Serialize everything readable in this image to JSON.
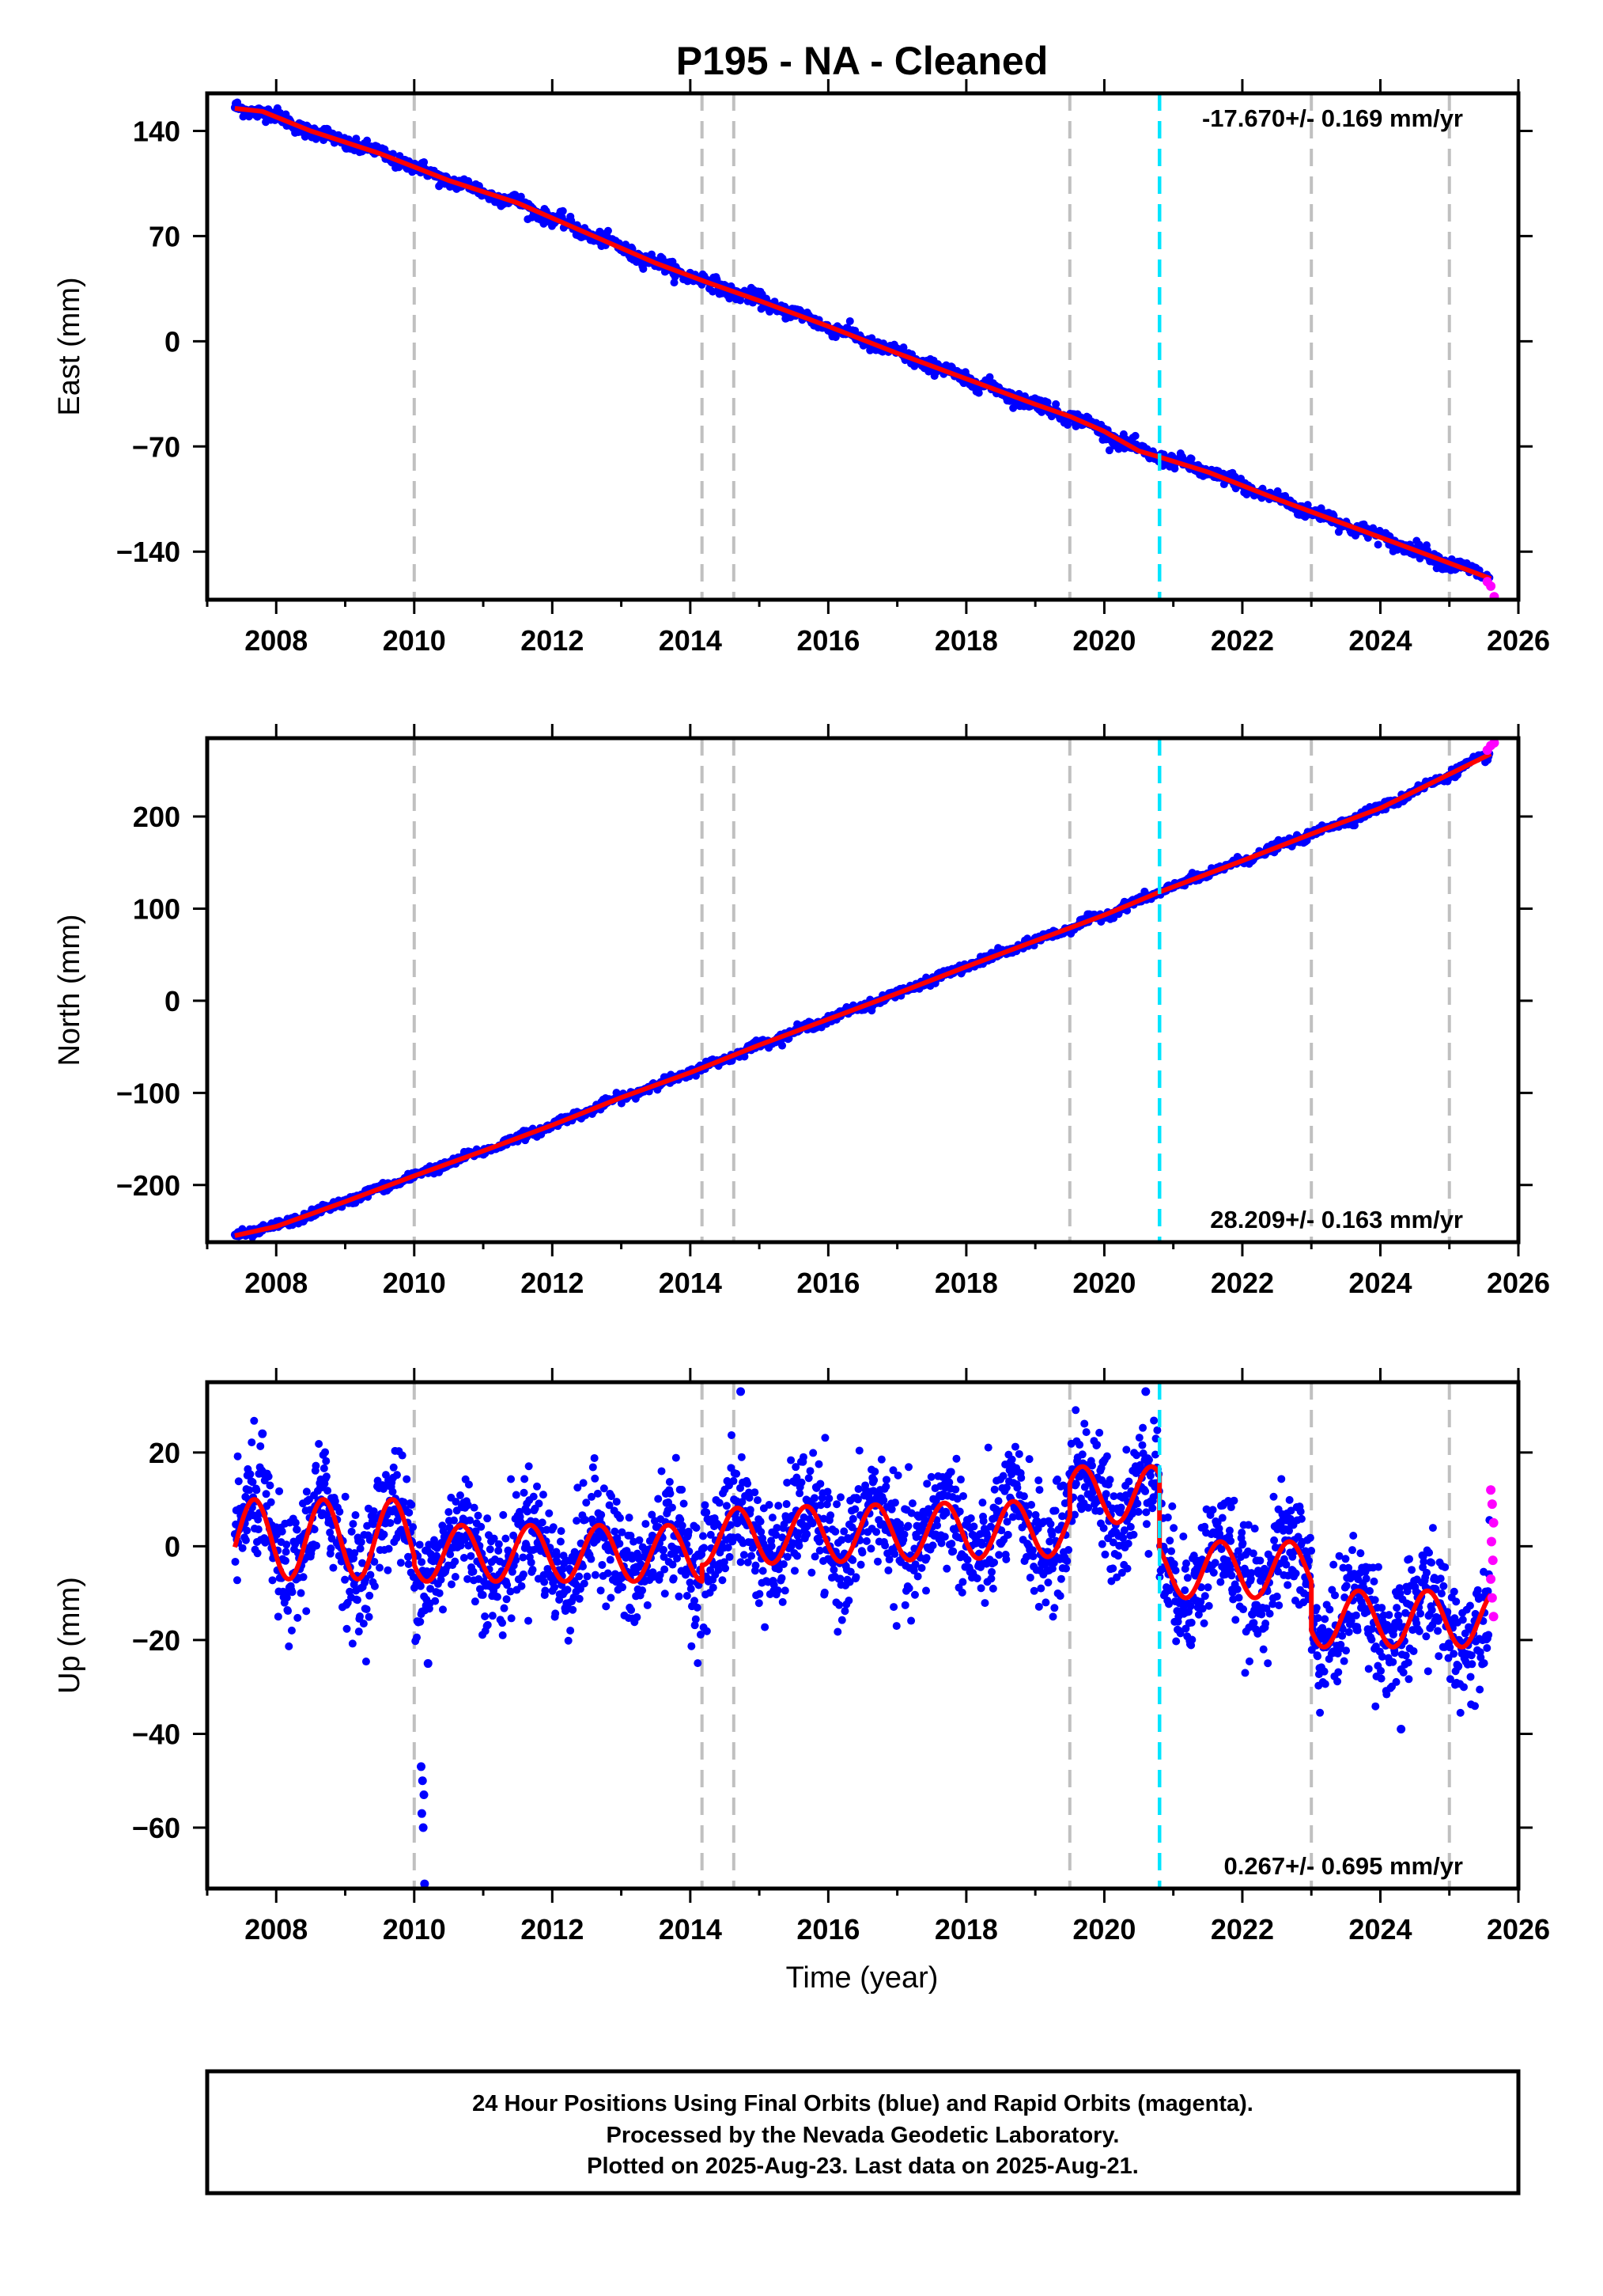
{
  "title": "P195  - NA - Cleaned",
  "xlabel": "Time (year)",
  "footer": {
    "line1": "24 Hour Positions Using Final Orbits (blue) and Rapid Orbits (magenta).",
    "line2": "Processed by the Nevada Geodetic Laboratory.",
    "line3": "Plotted on 2025-Aug-23. Last data on 2025-Aug-21."
  },
  "colors": {
    "final": "#0000ff",
    "rapid": "#ff00ff",
    "model": "#ff0000",
    "event_gray": "#c0c0c0",
    "event_cyan": "#00e5ff"
  },
  "chart_data": [
    {
      "type": "scatter",
      "ylabel": "East (mm)",
      "xlim": [
        2007.0,
        2026.0
      ],
      "ylim": [
        -172,
        165
      ],
      "xticks": [
        2008,
        2010,
        2012,
        2014,
        2016,
        2018,
        2020,
        2022,
        2024,
        2026
      ],
      "yticks": [
        -140,
        -70,
        0,
        70,
        140
      ],
      "rate": "-17.670+/- 0.169 mm/yr",
      "rate_position": "top-right",
      "gray_events": [
        2010.0,
        2014.17,
        2014.63,
        2019.5,
        2023.0,
        2025.0
      ],
      "cyan_events": [
        2020.8
      ],
      "model": [
        {
          "year": 2007.4,
          "value": 155
        },
        {
          "year": 2007.8,
          "value": 153
        },
        {
          "year": 2008.5,
          "value": 140
        },
        {
          "year": 2009.5,
          "value": 125
        },
        {
          "year": 2010.5,
          "value": 107
        },
        {
          "year": 2011.5,
          "value": 92
        },
        {
          "year": 2012.5,
          "value": 72
        },
        {
          "year": 2013.5,
          "value": 52
        },
        {
          "year": 2014.2,
          "value": 40
        },
        {
          "year": 2015.0,
          "value": 27
        },
        {
          "year": 2016.0,
          "value": 10
        },
        {
          "year": 2017.0,
          "value": -8
        },
        {
          "year": 2018.0,
          "value": -25
        },
        {
          "year": 2019.0,
          "value": -42
        },
        {
          "year": 2019.5,
          "value": -50
        },
        {
          "year": 2020.0,
          "value": -60
        },
        {
          "year": 2020.5,
          "value": -73
        },
        {
          "year": 2020.8,
          "value": -77
        },
        {
          "year": 2021.5,
          "value": -87
        },
        {
          "year": 2022.5,
          "value": -105
        },
        {
          "year": 2023.5,
          "value": -122
        },
        {
          "year": 2024.5,
          "value": -139
        },
        {
          "year": 2025.6,
          "value": -158
        }
      ],
      "rapid": [
        {
          "year": 2025.55,
          "value": -160
        },
        {
          "year": 2025.6,
          "value": -163
        },
        {
          "year": 2025.65,
          "value": -170
        }
      ]
    },
    {
      "type": "scatter",
      "ylabel": "North (mm)",
      "xlim": [
        2007.0,
        2026.0
      ],
      "ylim": [
        -262,
        285
      ],
      "xticks": [
        2008,
        2010,
        2012,
        2014,
        2016,
        2018,
        2020,
        2022,
        2024,
        2026
      ],
      "yticks": [
        -200,
        -100,
        0,
        100,
        200
      ],
      "rate": "28.209+/- 0.163 mm/yr",
      "rate_position": "bottom-right",
      "gray_events": [
        2010.0,
        2014.17,
        2014.63,
        2019.5,
        2023.0,
        2025.0
      ],
      "cyan_events": [
        2020.8
      ],
      "model": [
        {
          "year": 2007.4,
          "value": -255
        },
        {
          "year": 2008.0,
          "value": -245
        },
        {
          "year": 2009.0,
          "value": -218
        },
        {
          "year": 2010.0,
          "value": -190
        },
        {
          "year": 2011.0,
          "value": -163
        },
        {
          "year": 2012.0,
          "value": -135
        },
        {
          "year": 2013.0,
          "value": -105
        },
        {
          "year": 2014.0,
          "value": -78
        },
        {
          "year": 2015.0,
          "value": -48
        },
        {
          "year": 2016.0,
          "value": -20
        },
        {
          "year": 2017.0,
          "value": 8
        },
        {
          "year": 2018.0,
          "value": 37
        },
        {
          "year": 2019.0,
          "value": 65
        },
        {
          "year": 2020.0,
          "value": 93
        },
        {
          "year": 2020.8,
          "value": 118
        },
        {
          "year": 2022.0,
          "value": 152
        },
        {
          "year": 2023.0,
          "value": 181
        },
        {
          "year": 2024.0,
          "value": 209
        },
        {
          "year": 2025.6,
          "value": 268
        }
      ],
      "rapid": [
        {
          "year": 2025.55,
          "value": 272
        },
        {
          "year": 2025.6,
          "value": 277
        },
        {
          "year": 2025.65,
          "value": 280
        }
      ]
    },
    {
      "type": "scatter",
      "ylabel": "Up (mm)",
      "xlim": [
        2007.0,
        2026.0
      ],
      "ylim": [
        -73,
        35
      ],
      "xticks": [
        2008,
        2010,
        2012,
        2014,
        2016,
        2018,
        2020,
        2022,
        2024,
        2026
      ],
      "yticks": [
        -60,
        -40,
        -20,
        0,
        20
      ],
      "rate": "0.267+/- 0.695 mm/yr",
      "rate_position": "bottom-right",
      "gray_events": [
        2010.0,
        2014.17,
        2014.63,
        2019.5,
        2023.0,
        2025.0
      ],
      "cyan_events": [
        2020.8
      ],
      "model_segments": [
        {
          "from": 2007.4,
          "to": 2010.0,
          "offset": 1.5,
          "trend": 0.0,
          "amplitude": 8.5
        },
        {
          "from": 2010.0,
          "to": 2014.17,
          "offset": -1.5,
          "trend": 0.0,
          "amplitude": 6.0
        },
        {
          "from": 2014.17,
          "to": 2019.5,
          "offset": 2.0,
          "trend": 0.35,
          "amplitude": 6.0
        },
        {
          "from": 2019.5,
          "to": 2020.8,
          "offset": 11.0,
          "trend": 0.0,
          "amplitude": 6.0
        },
        {
          "from": 2020.8,
          "to": 2023.0,
          "offset": -5.0,
          "trend": 0.0,
          "amplitude": 6.0
        },
        {
          "from": 2023.0,
          "to": 2025.6,
          "offset": -15.5,
          "trend": 0.0,
          "amplitude": 6.0
        }
      ],
      "noise_mm": 6,
      "outliers": [
        {
          "year": 2010.1,
          "value": -47
        },
        {
          "year": 2010.12,
          "value": -50
        },
        {
          "year": 2010.14,
          "value": -53
        },
        {
          "year": 2010.11,
          "value": -57
        },
        {
          "year": 2010.13,
          "value": -60
        },
        {
          "year": 2010.15,
          "value": -72
        },
        {
          "year": 2010.2,
          "value": -25
        },
        {
          "year": 2007.8,
          "value": 24
        },
        {
          "year": 2014.73,
          "value": 33
        },
        {
          "year": 2020.6,
          "value": 33
        },
        {
          "year": 2024.3,
          "value": -39
        }
      ],
      "rapid": [
        {
          "year": 2025.6,
          "value": 12
        },
        {
          "year": 2025.62,
          "value": 9
        },
        {
          "year": 2025.64,
          "value": 5
        },
        {
          "year": 2025.61,
          "value": 1
        },
        {
          "year": 2025.63,
          "value": -3
        },
        {
          "year": 2025.6,
          "value": -7
        },
        {
          "year": 2025.62,
          "value": -11
        },
        {
          "year": 2025.64,
          "value": -15
        }
      ]
    }
  ]
}
